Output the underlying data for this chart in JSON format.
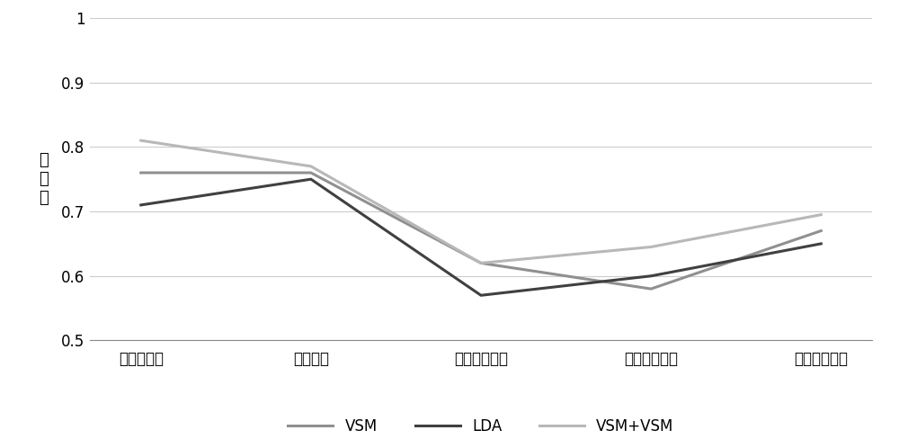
{
  "categories": [
    "里约奥运会",
    "股票市场",
    "韩国萨德导弹",
    "王宝强离婚案",
    "泰国连环爆炸"
  ],
  "series": [
    {
      "name": "VSM",
      "values": [
        0.76,
        0.76,
        0.62,
        0.58,
        0.67
      ],
      "color": "#909090",
      "linewidth": 2.2,
      "linestyle": "-"
    },
    {
      "name": "LDA",
      "values": [
        0.71,
        0.75,
        0.57,
        0.6,
        0.65
      ],
      "color": "#404040",
      "linewidth": 2.2,
      "linestyle": "-"
    },
    {
      "name": "VSM+VSM",
      "values": [
        0.81,
        0.77,
        0.62,
        0.645,
        0.695
      ],
      "color": "#b8b8b8",
      "linewidth": 2.2,
      "linestyle": "-"
    }
  ],
  "ylabel": "百\n分\n比",
  "ylim": [
    0.5,
    1.0
  ],
  "ytick_labels": [
    "0.5",
    "0.6",
    "0.7",
    "0.8",
    "0.9",
    "1"
  ],
  "ytick_values": [
    0.5,
    0.6,
    0.7,
    0.8,
    0.9,
    1.0
  ],
  "background_color": "#ffffff",
  "grid_color": "#cccccc",
  "legend_ncol": 3,
  "axis_fontsize": 13,
  "tick_fontsize": 12,
  "legend_fontsize": 12
}
